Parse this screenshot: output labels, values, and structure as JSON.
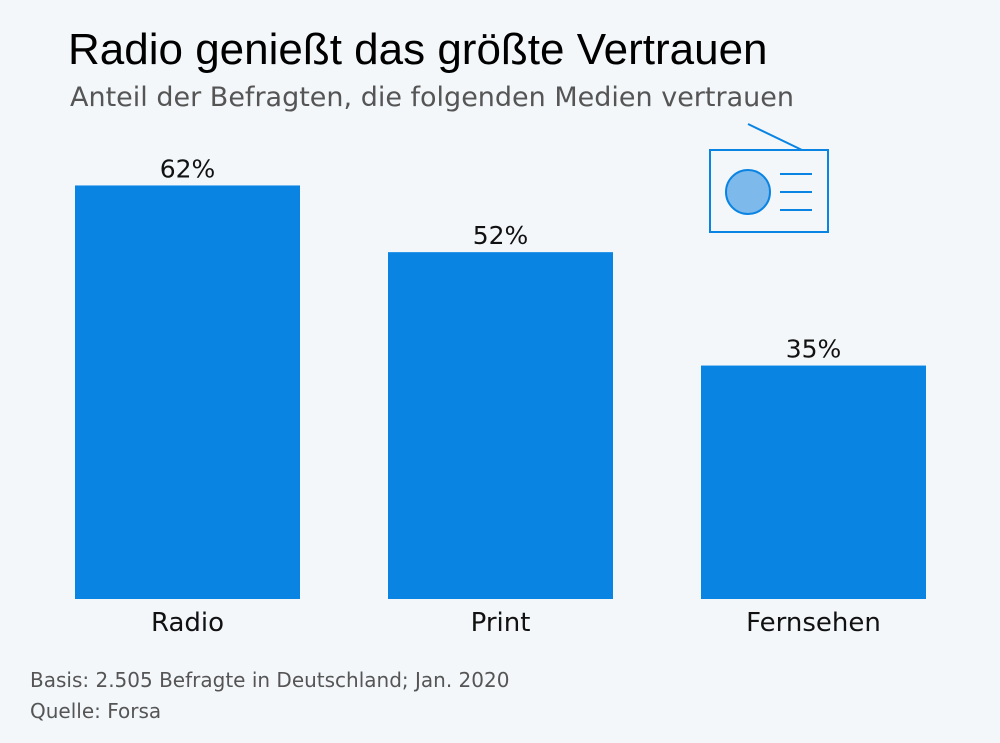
{
  "chart_data": {
    "type": "bar",
    "title": "Radio genießt das größte Vertrauen",
    "subtitle": "Anteil der Befragten, die folgenden Medien vertrauen",
    "categories": [
      "Radio",
      "Print",
      "Fernsehen"
    ],
    "values": [
      62,
      52,
      35
    ],
    "value_labels": [
      "62%",
      "52%",
      "35%"
    ],
    "xlabel": "",
    "ylabel": "",
    "ylim": [
      0,
      100
    ],
    "grid": false,
    "bar_color": "#0a84e3"
  },
  "decoration": {
    "icon": "radio-icon",
    "color": "#0a84e3",
    "fill_color": "#7eb9ec"
  },
  "footer": {
    "basis": "Basis: 2.505 Befragte in Deutschland; Jan. 2020",
    "source": "Quelle: Forsa"
  }
}
